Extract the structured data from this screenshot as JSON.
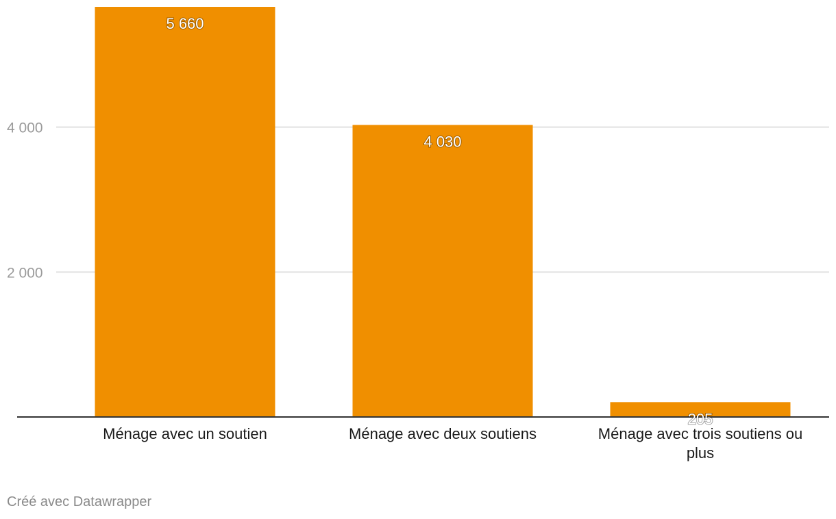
{
  "chart_data": {
    "type": "bar",
    "categories": [
      [
        "Ménage avec un soutien"
      ],
      [
        "Ménage avec deux soutiens"
      ],
      [
        "Ménage avec trois soutiens ou",
        "plus"
      ]
    ],
    "values": [
      5660,
      4030,
      205
    ],
    "value_labels": [
      "5 660",
      "4 030",
      "205"
    ],
    "yticks": [
      2000,
      4000
    ],
    "ytick_labels": [
      "2 000",
      "4 000"
    ],
    "ylim": [
      0,
      5660
    ],
    "grid": true,
    "colors": {
      "bar": "#f08f00",
      "grid": "#e0e0e0",
      "axis": "#333333"
    }
  },
  "footer": {
    "credit": "Créé avec Datawrapper"
  }
}
